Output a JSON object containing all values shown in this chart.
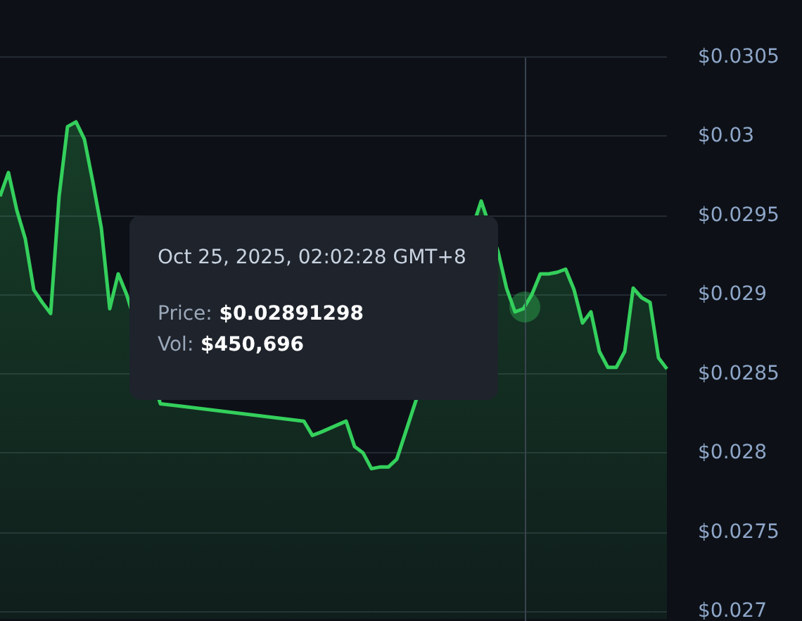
{
  "chart_data": {
    "type": "area",
    "categories": [
      null,
      null,
      null,
      null,
      null,
      null,
      null,
      null,
      null,
      null,
      null,
      null,
      null,
      null,
      null,
      null,
      null,
      null,
      null,
      null,
      null,
      null,
      null,
      null,
      null,
      null,
      null,
      null,
      null,
      null,
      null,
      null,
      null,
      null,
      null,
      null,
      null,
      null,
      null,
      null,
      null,
      null,
      null,
      null,
      null,
      null,
      null,
      null,
      null,
      null,
      null,
      null,
      null,
      null,
      null,
      null,
      null,
      null,
      null,
      null,
      null,
      null,
      null,
      null,
      null,
      null,
      null,
      null,
      null,
      null,
      null,
      null,
      null,
      null,
      null,
      null,
      null,
      null,
      null,
      null
    ],
    "series": [
      {
        "color": "#34d05c",
        "values": [
          0.02962,
          0.02977,
          0.02953,
          0.02935,
          0.02903,
          0.02895,
          0.02888,
          0.02962,
          0.03006,
          0.03009,
          0.02998,
          0.02971,
          0.02942,
          0.02891,
          0.02913,
          0.029,
          null,
          null,
          null,
          0.02831,
          null,
          null,
          null,
          null,
          null,
          null,
          null,
          null,
          null,
          null,
          null,
          null,
          null,
          null,
          null,
          null,
          0.0282,
          0.02811,
          0.02813,
          null,
          null,
          0.0282,
          0.02804,
          0.028,
          0.0279,
          0.02791,
          0.02791,
          0.02796,
          null,
          null,
          null,
          null,
          null,
          null,
          null,
          null,
          null,
          0.02959,
          null,
          0.02927,
          0.02904,
          0.02889,
          0.02891,
          0.029,
          0.02913,
          0.02913,
          0.02914,
          0.02916,
          0.02903,
          0.02882,
          0.02889,
          0.02864,
          0.02854,
          0.02854,
          0.02864,
          0.02904,
          0.02898,
          0.02895,
          0.0286,
          0.02853
        ]
      }
    ],
    "ylim": [
      0.02695,
      0.03086
    ],
    "yticks": [
      {
        "value": 0.027,
        "label": "$0.027"
      },
      {
        "value": 0.0275,
        "label": "$0.0275"
      },
      {
        "value": 0.028,
        "label": "$0.028"
      },
      {
        "value": 0.0285,
        "label": "$0.0285"
      },
      {
        "value": 0.029,
        "label": "$0.029"
      },
      {
        "value": 0.0295,
        "label": "$0.0295"
      },
      {
        "value": 0.03,
        "label": "$0.03"
      },
      {
        "value": 0.0305,
        "label": "$0.0305"
      }
    ],
    "grid": "y",
    "annotations": [
      "Oct 25, 2025, 02:02:28 GMT+8",
      "Price: $0.02891298",
      "Vol: $450,696"
    ]
  }
}
